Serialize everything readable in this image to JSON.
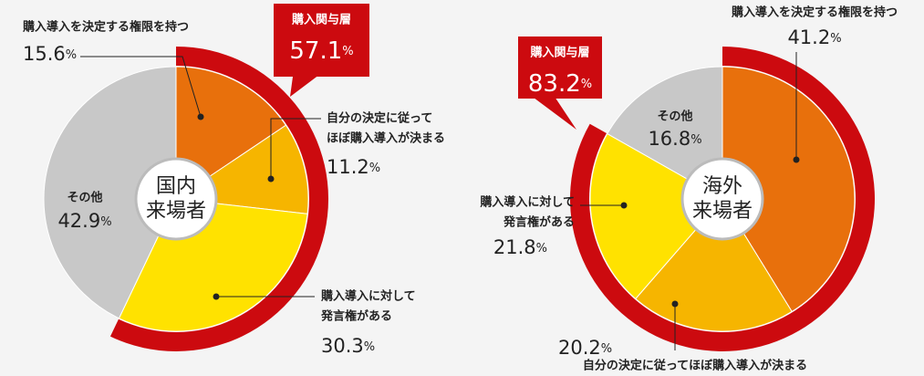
{
  "chart_data": [
    {
      "type": "pie",
      "title": [
        "国内",
        "来場者"
      ],
      "categories": [
        [
          "購入導入を決定する権限を持つ"
        ],
        [
          "自分の決定に従って",
          "ほぼ購入導入が決まる"
        ],
        [
          "購入導入に対して",
          "発言権がある"
        ],
        [
          "その他"
        ]
      ],
      "values": [
        15.6,
        11.2,
        30.3,
        42.9
      ],
      "value_labels": [
        "15.6%",
        "11.2%",
        "30.3%",
        "42.9%"
      ],
      "colors": [
        "#e8700c",
        "#f6b500",
        "#ffe200",
        "#c8c8c8"
      ],
      "annotation": {
        "label": "購入関与層",
        "value": 57.1,
        "value_label": "57.1%",
        "color": "#cc0a0f"
      }
    },
    {
      "type": "pie",
      "title": [
        "海外",
        "来場者"
      ],
      "categories": [
        [
          "購入導入を決定する権限を持つ"
        ],
        [
          "自分の決定に従ってほぼ購入導入が決まる"
        ],
        [
          "購入導入に対して",
          "発言権がある"
        ],
        [
          "その他"
        ]
      ],
      "values": [
        41.2,
        20.2,
        21.8,
        16.8
      ],
      "value_labels": [
        "41.2%",
        "20.2%",
        "21.8%",
        "16.8%"
      ],
      "colors": [
        "#e8700c",
        "#f6b500",
        "#ffe200",
        "#c8c8c8"
      ],
      "annotation": {
        "label": "購入関与層",
        "value": 83.2,
        "value_label": "83.2%",
        "color": "#cc0a0f"
      }
    }
  ]
}
